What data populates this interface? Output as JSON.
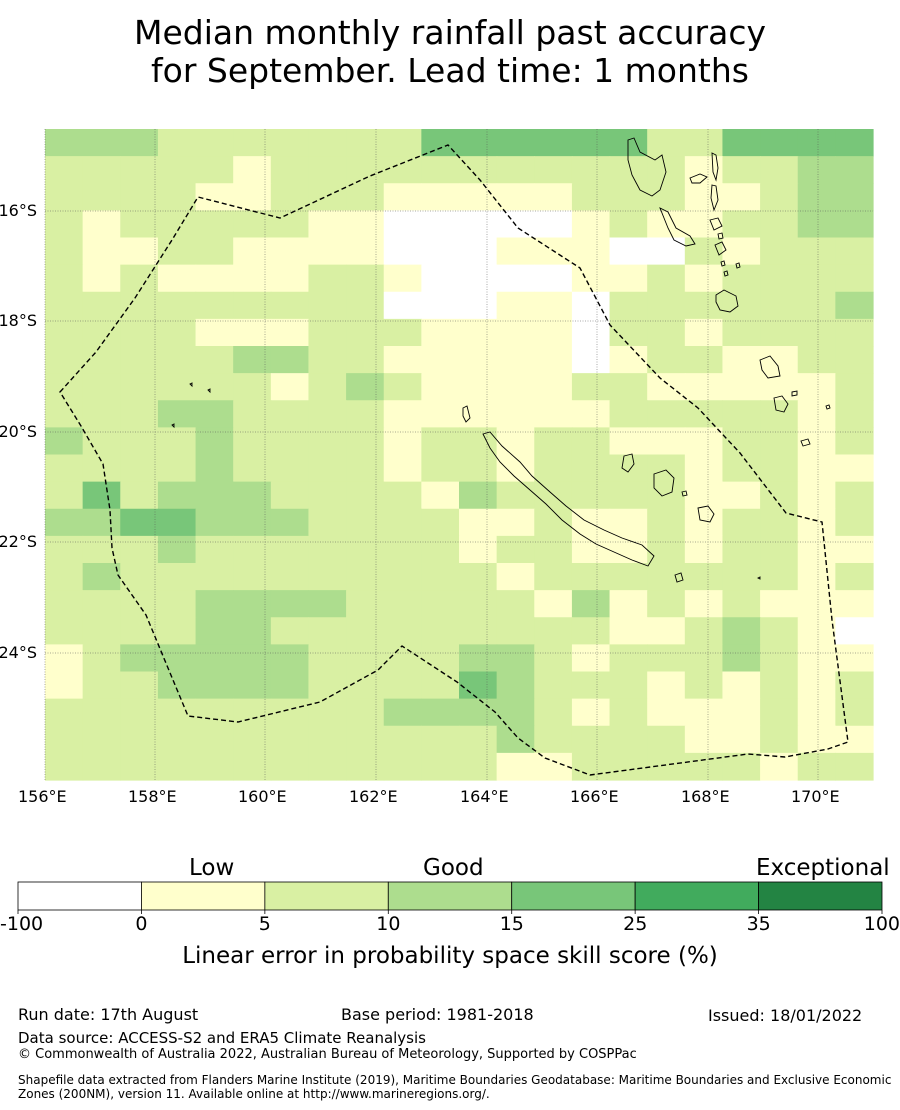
{
  "title": {
    "line1": "Median monthly rainfall past accuracy",
    "line2": "for September. Lead time: 1 months"
  },
  "map": {
    "lon_ticks": [
      "156°E",
      "158°E",
      "160°E",
      "162°E",
      "164°E",
      "166°E",
      "168°E",
      "170°E"
    ],
    "lat_ticks": [
      "16°S",
      "18°S",
      "20°S",
      "22°S",
      "24°S"
    ],
    "lon_range": [
      156,
      171
    ],
    "lat_range": [
      -14.7,
      -26.5
    ],
    "grid_lines": true,
    "boundary_label": "Maritime boundary (EEZ)",
    "cell_levels": [
      "3332222222444444224444",
      "2222212222222222212233",
      "2222112221111122211233",
      "2122222110000012112233",
      "2112211110001110021222",
      "2121111221000011212222",
      "2222222220001102222223",
      "2222111222111102212222",
      "2222233221111101221122",
      "2222221232111122111112",
      "2223322221111112222212",
      "3222322221221221112212",
      "2222322221221222212211",
      "2423332222132222211212",
      "3344333222211211212212",
      "2223222222212211212211",
      "2322222222221222222212",
      "2222333322222131212111",
      "2222332222222221123210",
      "1233333222233212223211",
      "1223333222243222121212",
      "2222222223333212111212",
      "2222222222223222211211",
      "2222222222221122222122"
    ]
  },
  "colorbar": {
    "categories": [
      "Low",
      "Good",
      "Exceptional"
    ],
    "ticks": [
      "-100",
      "0",
      "5",
      "10",
      "15",
      "25",
      "35",
      "100"
    ],
    "colors": [
      "#ffffff",
      "#ffffcc",
      "#d9f0a3",
      "#addd8e",
      "#78c679",
      "#41ab5d",
      "#238443"
    ],
    "label": "Linear error in probability space skill score (%)"
  },
  "footer": {
    "run_date": "Run date: 17th August",
    "base_period": "Base period: 1981-2018",
    "issued": "Issued: 18/01/2022",
    "data_source": "Data source: ACCESS-S2 and ERA5 Climate Reanalysis",
    "copyright": "© Commonwealth of Australia 2022, Australian Bureau of Meteorology, Supported by COSPPac",
    "shapefile": "Shapefile data extracted from Flanders Marine Institute (2019), Maritime Boundaries Geodatabase: Maritime Boundaries and Exclusive Economic Zones (200NM), version 11. Available online at http://www.marineregions.org/."
  }
}
